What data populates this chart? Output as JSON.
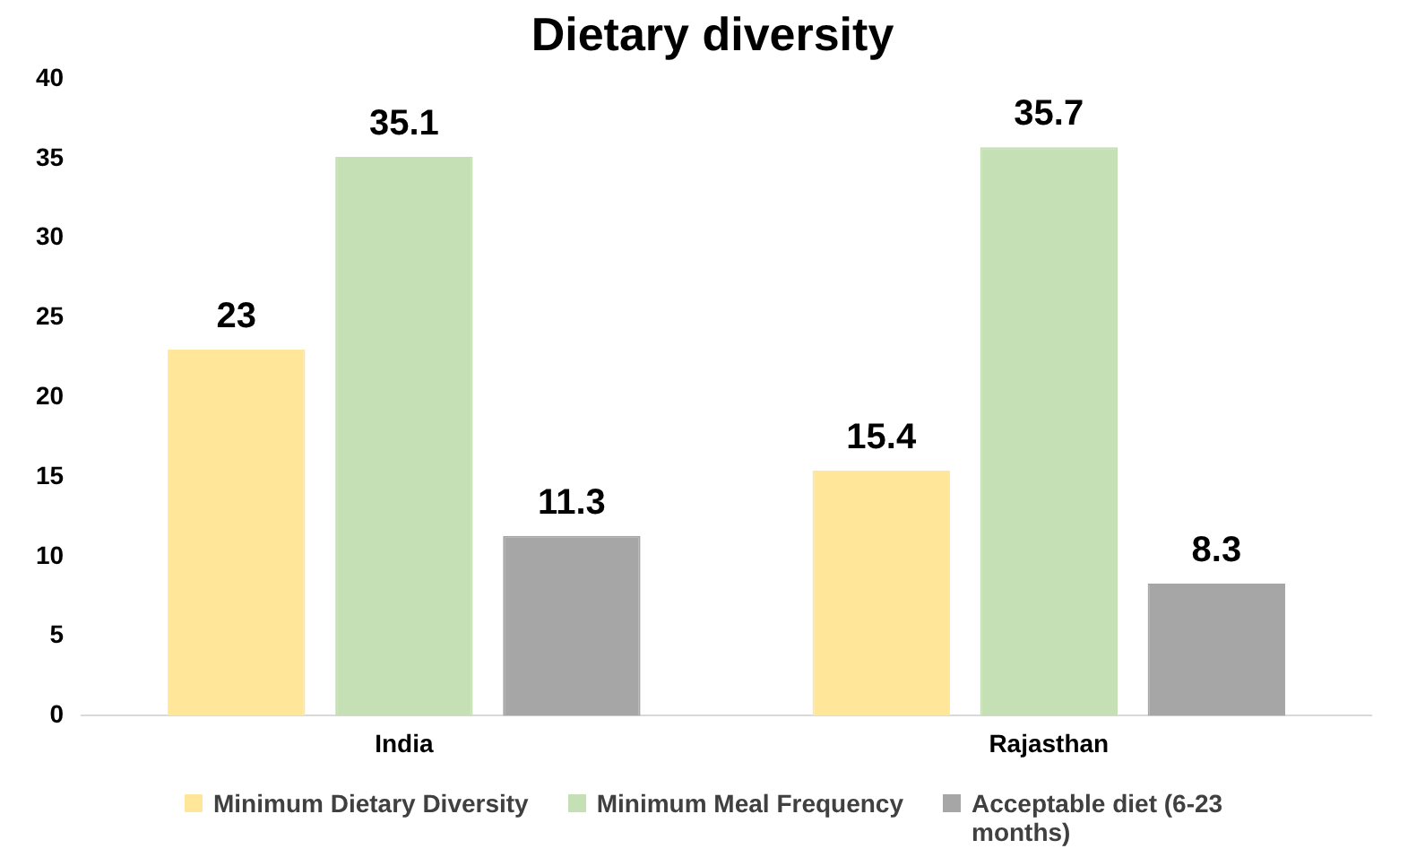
{
  "chart_data": {
    "type": "bar",
    "title": "Dietary diversity",
    "categories": [
      "India",
      "Rajasthan"
    ],
    "series": [
      {
        "name": "Minimum Dietary Diversity",
        "color": "#ffe699",
        "values": [
          23,
          15.4
        ]
      },
      {
        "name": "Minimum Meal Frequency",
        "color": "#c5e0b4",
        "values": [
          35.1,
          35.7
        ]
      },
      {
        "name": "Acceptable diet (6-23 months)",
        "color": "#a6a6a6",
        "values": [
          11.3,
          8.3
        ]
      }
    ],
    "ylim": [
      0,
      40
    ],
    "yticks": [
      0,
      5,
      10,
      15,
      20,
      25,
      30,
      35,
      40
    ],
    "grid": false,
    "legend": "bottom",
    "data_labels": true
  }
}
